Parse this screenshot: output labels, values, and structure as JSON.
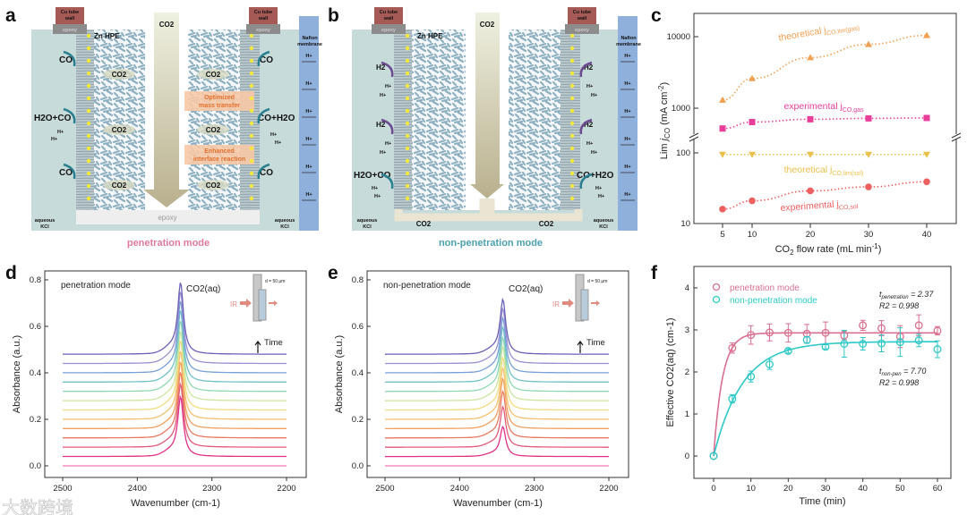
{
  "panel_labels": [
    "a",
    "b",
    "c",
    "d",
    "e",
    "f"
  ],
  "diagram_a": {
    "cu_tube": "Cu tube",
    "wall": "wall",
    "epoxy": "epoxy",
    "zn_hpe": "Zn HPE",
    "co2_in": "CO2",
    "nafion_1": "Nafion",
    "nafion_2": "membrane",
    "h_plus": "H+",
    "co": "CO",
    "h2o_co": "H2O+CO",
    "co_h2o": "CO+H2O",
    "co2": "CO2",
    "box1_1": "Optimized",
    "box1_2": "mass transfer",
    "box2_1": "Enhanced",
    "box2_2": "interface reaction",
    "aqueous": "aqueous",
    "kcl": "KCl",
    "bottom_epoxy": "epoxy",
    "mode": "penetration mode"
  },
  "diagram_b": {
    "h2": "H2",
    "mode": "non-penetration mode"
  },
  "colors": {
    "penetration": "#d9708f",
    "non_penetration": "#2ec8c8",
    "mode_a": "#e07aa0",
    "mode_b": "#4aa0b0"
  },
  "chart_data": [
    {
      "panel": "c",
      "type": "line",
      "xlabel": "CO2 flow rate (mL min-1)",
      "xlabel_parts": [
        "CO",
        "2",
        " flow rate (mL min",
        "-1",
        ")"
      ],
      "ylabel_parts": [
        "Lim ",
        "j",
        "CO",
        " (mA cm",
        "-2",
        ")"
      ],
      "yscale": "log (broken axis)",
      "x": [
        5,
        10,
        20,
        30,
        40
      ],
      "xticks": [
        "5",
        "10",
        "20",
        "30",
        "40"
      ],
      "yticks": [
        "10",
        "100",
        "1000",
        "10000"
      ],
      "series": [
        {
          "name": "theoretical jCO,lim(gas)",
          "label": "theoretical j",
          "sub": "CO,lim(gas)",
          "marker": "triangle-up",
          "color": "#f0a050",
          "values": [
            1300,
            2600,
            5100,
            7800,
            10400
          ]
        },
        {
          "name": "experimental jCO,gas",
          "label": "experimental j",
          "sub": "CO,gas",
          "marker": "square",
          "color": "#e83e9a",
          "values": [
            520,
            640,
            700,
            720,
            730
          ]
        },
        {
          "name": "theoretical jCO,lim(sol)",
          "label": "theoretical j",
          "sub": "CO,lim(sol)",
          "marker": "triangle-down",
          "color": "#e8c04a",
          "values": [
            95,
            95,
            95,
            95,
            95
          ]
        },
        {
          "name": "experimental jCO,sol",
          "label": "experimental j",
          "sub": "CO,sol",
          "marker": "circle",
          "color": "#ee6060",
          "values": [
            16,
            21,
            29,
            33,
            39
          ]
        }
      ]
    },
    {
      "panel": "d",
      "type": "line",
      "title": "penetration mode",
      "peak_label": "CO2(aq)",
      "inset_d": "d = 50 μm",
      "inset_ir": "IR",
      "time_label": "Time",
      "xlabel": "Wavenumber (cm-1)",
      "ylabel": "Absorbance (a.u.)",
      "xlim": [
        2500,
        2200
      ],
      "ylim": [
        0,
        0.8
      ],
      "xticks": [
        "2500",
        "2400",
        "2300",
        "2200"
      ],
      "yticks": [
        "0.0",
        "0.2",
        "0.4",
        "0.6",
        "0.8"
      ],
      "peak_position": 2342,
      "baselines": [
        0,
        0.04,
        0.08,
        0.12,
        0.16,
        0.2,
        0.24,
        0.28,
        0.32,
        0.36,
        0.4,
        0.44,
        0.48
      ],
      "peak_heights": [
        0,
        0.25,
        0.265,
        0.275,
        0.28,
        0.285,
        0.29,
        0.29,
        0.295,
        0.3,
        0.3,
        0.3,
        0.3
      ]
    },
    {
      "panel": "e",
      "type": "line",
      "title": "non-penetration mode",
      "peak_label": "CO2(aq)",
      "inset_d": "d = 50 μm",
      "inset_ir": "IR",
      "time_label": "Time",
      "xlabel": "Wavenumber (cm-1)",
      "ylabel": "Absorbance (a.u.)",
      "xlim": [
        2500,
        2200
      ],
      "ylim": [
        0,
        0.8
      ],
      "xticks": [
        "2500",
        "2400",
        "2300",
        "2200"
      ],
      "yticks": [
        "0.0",
        "0.2",
        "0.4",
        "0.6",
        "0.8"
      ],
      "peak_position": 2342,
      "baselines": [
        0,
        0.04,
        0.08,
        0.12,
        0.16,
        0.2,
        0.24,
        0.28,
        0.32,
        0.36,
        0.4,
        0.44,
        0.48
      ],
      "peak_heights": [
        0,
        0.125,
        0.17,
        0.195,
        0.21,
        0.215,
        0.22,
        0.225,
        0.225,
        0.23,
        0.23,
        0.23,
        0.23
      ]
    },
    {
      "panel": "f",
      "type": "scatter",
      "xlabel": "Time (min)",
      "ylabel": "Effective CO2(aq) (cm-1)",
      "xlim": [
        -4,
        64
      ],
      "ylim": [
        -0.5,
        4.5
      ],
      "xticks": [
        "0",
        "10",
        "20",
        "30",
        "40",
        "50",
        "60"
      ],
      "yticks": [
        "0",
        "1",
        "2",
        "3",
        "4"
      ],
      "x": [
        0,
        5,
        10,
        15,
        20,
        25,
        30,
        35,
        40,
        45,
        50,
        55,
        60
      ],
      "series": [
        {
          "name": "penetration mode",
          "color": "#d9708f",
          "values": [
            0,
            2.57,
            2.88,
            2.94,
            2.93,
            2.91,
            2.93,
            2.87,
            3.11,
            3.04,
            2.84,
            3.11,
            2.98
          ],
          "errors": [
            0,
            0.12,
            0.22,
            0.2,
            0.22,
            0.22,
            0.26,
            0.1,
            0.12,
            0.18,
            0.26,
            0.25,
            0.1
          ],
          "fit": {
            "A": 2.93,
            "tau": 2.37
          },
          "ann1": "t",
          "ann1_sub": "penetration",
          "ann1_val": " = 2.37",
          "ann2": "R2 = 0.998"
        },
        {
          "name": "non-penetration mode",
          "color": "#2ec8c8",
          "values": [
            0,
            1.36,
            1.89,
            2.18,
            2.5,
            2.76,
            2.6,
            2.67,
            2.67,
            2.68,
            2.71,
            2.75,
            2.54
          ],
          "errors": [
            0,
            0.1,
            0.13,
            0.12,
            0.05,
            0.08,
            0.05,
            0.32,
            0.15,
            0.2,
            0.34,
            0.15,
            0.2
          ],
          "fit": {
            "A": 2.72,
            "tau": 7.7
          },
          "ann1": "t",
          "ann1_sub": "non-pen",
          "ann1_val": " = 7.70",
          "ann2": "R2 = 0.998"
        }
      ]
    }
  ],
  "watermark": "大数跨境"
}
